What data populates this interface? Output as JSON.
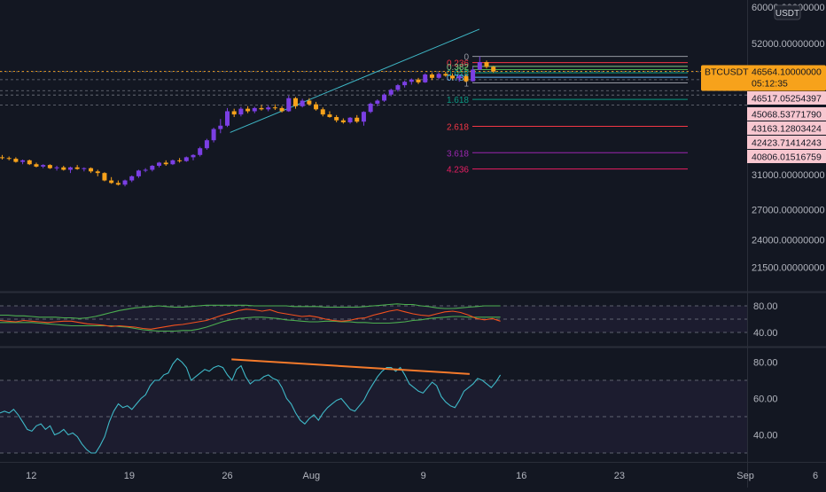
{
  "chart_data": {
    "type": "candlestick",
    "symbol": "BTCUSDT",
    "currency_badge": "USDT",
    "colors": {
      "background": "#131722",
      "up": "#7b3fe4",
      "down": "#f7a21b",
      "price_tag": "#f7a21b",
      "level_tag": "#f8c7d0",
      "rsi_line": "#3fb9c8",
      "trendline": "#3fb9c8",
      "divergence": "#f47a2b"
    },
    "price_axis": {
      "scale": "log",
      "range": [
        19000,
        60000
      ],
      "ticks": [
        "60000.00000000",
        "52000.00000000",
        "31000.00000000",
        "27000.00000000",
        "24000.00000000",
        "21500.00000000"
      ]
    },
    "price_tag": {
      "label": "BTCUSDT",
      "value": "46564.10000000",
      "countdown": "05:12:35"
    },
    "level_tags": [
      "46517.05254397",
      "45068.53771790",
      "43163.12803424",
      "42423.71414243",
      "40806.01516759"
    ],
    "fib_levels": [
      {
        "label": "0",
        "price": 49400,
        "color": "#9598a1"
      },
      {
        "label": "0.236",
        "price": 48200,
        "color": "#f23645"
      },
      {
        "label": "0.382",
        "price": 47500,
        "color": "#81c784"
      },
      {
        "label": "0.5",
        "price": 46900,
        "color": "#4caf50"
      },
      {
        "label": "0.618",
        "price": 46300,
        "color": "#089981"
      },
      {
        "label": "0.786",
        "price": 45500,
        "color": "#64b5f6"
      },
      {
        "label": "1",
        "price": 44500,
        "color": "#9598a1"
      },
      {
        "label": "1.618",
        "price": 41700,
        "color": "#089981"
      },
      {
        "label": "2.618",
        "price": 37500,
        "color": "#f23645"
      },
      {
        "label": "3.618",
        "price": 33800,
        "color": "#9c27b0"
      },
      {
        "label": "4.236",
        "price": 31700,
        "color": "#e91e63"
      }
    ],
    "x_ticks": [
      {
        "label": "12",
        "day": 0
      },
      {
        "label": "19",
        "day": 7
      },
      {
        "label": "26",
        "day": 14
      },
      {
        "label": "Aug",
        "day": 20
      },
      {
        "label": "9",
        "day": 28
      },
      {
        "label": "16",
        "day": 35
      },
      {
        "label": "23",
        "day": 42
      },
      {
        "label": "Sep",
        "day": 51
      },
      {
        "label": "6",
        "day": 56
      }
    ],
    "candles": [
      [
        33700,
        33900,
        33400,
        33600
      ],
      [
        33600,
        33800,
        33300,
        33500
      ],
      [
        33500,
        33700,
        33200,
        33700
      ],
      [
        33700,
        33900,
        33400,
        33500
      ],
      [
        33500,
        34100,
        33300,
        34000
      ],
      [
        34000,
        34100,
        33100,
        33200
      ],
      [
        33200,
        33500,
        32900,
        33100
      ],
      [
        33100,
        33300,
        32800,
        33000
      ],
      [
        33000,
        33200,
        32500,
        32600
      ],
      [
        32600,
        32900,
        32300,
        32800
      ],
      [
        32800,
        32900,
        32200,
        32300
      ],
      [
        32300,
        32500,
        31900,
        32000
      ],
      [
        32000,
        32300,
        31800,
        32200
      ],
      [
        32200,
        32300,
        31700,
        31800
      ],
      [
        31800,
        32100,
        31500,
        31900
      ],
      [
        31900,
        32100,
        31500,
        31600
      ],
      [
        31600,
        32000,
        31200,
        31900
      ],
      [
        31900,
        32200,
        31600,
        31700
      ],
      [
        31700,
        31900,
        31400,
        31800
      ],
      [
        31800,
        31900,
        31200,
        31400
      ],
      [
        31400,
        31600,
        30800,
        31200
      ],
      [
        31200,
        31300,
        30200,
        30300
      ],
      [
        30300,
        30700,
        29900,
        30000
      ],
      [
        30000,
        30300,
        29700,
        29800
      ],
      [
        29800,
        30400,
        29600,
        30300
      ],
      [
        30300,
        30900,
        30100,
        30800
      ],
      [
        30800,
        31600,
        30600,
        31500
      ],
      [
        31500,
        31800,
        31300,
        31600
      ],
      [
        31600,
        32200,
        31400,
        32100
      ],
      [
        32100,
        32600,
        31900,
        32500
      ],
      [
        32500,
        32800,
        32100,
        32300
      ],
      [
        32300,
        32900,
        32200,
        32800
      ],
      [
        32800,
        33100,
        32500,
        32700
      ],
      [
        32700,
        33300,
        32600,
        33200
      ],
      [
        33200,
        33600,
        32800,
        33500
      ],
      [
        33500,
        34600,
        33300,
        34400
      ],
      [
        34400,
        35700,
        34200,
        35500
      ],
      [
        35500,
        37300,
        35200,
        37100
      ],
      [
        37100,
        38600,
        36500,
        37600
      ],
      [
        37600,
        40300,
        37400,
        39800
      ],
      [
        39800,
        40200,
        38900,
        39300
      ],
      [
        39300,
        40500,
        39000,
        40200
      ],
      [
        40200,
        40600,
        39500,
        39800
      ],
      [
        39800,
        40500,
        39500,
        40300
      ],
      [
        40300,
        40800,
        39900,
        40100
      ],
      [
        40100,
        40700,
        39800,
        40400
      ],
      [
        40400,
        40900,
        40000,
        40300
      ],
      [
        40300,
        40600,
        39600,
        39800
      ],
      [
        39800,
        42300,
        39700,
        41900
      ],
      [
        41900,
        42100,
        40200,
        40600
      ],
      [
        40600,
        41800,
        40400,
        41500
      ],
      [
        41500,
        41900,
        40700,
        40900
      ],
      [
        40900,
        41300,
        39900,
        40100
      ],
      [
        40100,
        40400,
        39000,
        39300
      ],
      [
        39300,
        39800,
        38800,
        38900
      ],
      [
        38900,
        39200,
        38100,
        38400
      ],
      [
        38400,
        38700,
        37900,
        38100
      ],
      [
        38100,
        38900,
        37900,
        38800
      ],
      [
        38800,
        39200,
        38000,
        38200
      ],
      [
        38200,
        39800,
        37600,
        39700
      ],
      [
        39700,
        41200,
        39500,
        41000
      ],
      [
        41000,
        41700,
        40600,
        41500
      ],
      [
        41500,
        42700,
        41300,
        42500
      ],
      [
        42500,
        43500,
        42200,
        43300
      ],
      [
        43300,
        44300,
        43000,
        44100
      ],
      [
        44100,
        44900,
        43700,
        44700
      ],
      [
        44700,
        45300,
        44200,
        45100
      ],
      [
        45100,
        45400,
        44300,
        44600
      ],
      [
        44600,
        46200,
        44500,
        46000
      ],
      [
        46000,
        46300,
        45000,
        45400
      ],
      [
        45400,
        46400,
        45200,
        46100
      ],
      [
        46100,
        46500,
        45600,
        45800
      ],
      [
        45800,
        46200,
        45000,
        45300
      ],
      [
        45300,
        46000,
        44700,
        45700
      ],
      [
        45700,
        46100,
        44600,
        44800
      ],
      [
        44800,
        47400,
        44700,
        46900
      ],
      [
        46900,
        49400,
        46800,
        48300
      ],
      [
        48300,
        48600,
        47100,
        47400
      ],
      [
        47400,
        47600,
        46300,
        46564
      ]
    ],
    "trendline": {
      "from": {
        "day": 14.2,
        "price": 36600
      },
      "to": {
        "day": 32,
        "price": 55000
      }
    },
    "stoch_panel": {
      "ticks": [
        "80.00",
        "40.00"
      ],
      "band": [
        40,
        80
      ],
      "upper": [
        66,
        66,
        65,
        65,
        64,
        63,
        63,
        63,
        62,
        62,
        61,
        62,
        64,
        67,
        70,
        73,
        75,
        77,
        78,
        79,
        80,
        79,
        78,
        78,
        79,
        80,
        81,
        81,
        81,
        81,
        81,
        81,
        80,
        80,
        80,
        80,
        80,
        79,
        79,
        79,
        79,
        78,
        78,
        78,
        78,
        78,
        79,
        80,
        81,
        82,
        83,
        82,
        82,
        80,
        79,
        77,
        76,
        76,
        77,
        78,
        79,
        80,
        80,
        80
      ],
      "lower": [
        55,
        55,
        55,
        55,
        55,
        54,
        53,
        52,
        51,
        50,
        50,
        50,
        50,
        50,
        50,
        49,
        48,
        46,
        44,
        43,
        42,
        42,
        42,
        43,
        43,
        45,
        48,
        52,
        56,
        59,
        61,
        62,
        63,
        63,
        62,
        61,
        59,
        58,
        57,
        56,
        56,
        57,
        57,
        56,
        56,
        55,
        55,
        54,
        54,
        54,
        55,
        56,
        58,
        59,
        61,
        62,
        63,
        64,
        64,
        63,
        63,
        63,
        63,
        63
      ],
      "k_line": [
        58,
        57,
        56,
        58,
        57,
        56,
        55,
        56,
        57,
        57,
        55,
        53,
        52,
        51,
        49,
        50,
        49,
        48,
        46,
        45,
        47,
        49,
        51,
        52,
        54,
        56,
        58,
        62,
        66,
        69,
        73,
        75,
        74,
        72,
        74,
        70,
        68,
        66,
        64,
        65,
        63,
        60,
        58,
        57,
        58,
        61,
        62,
        66,
        69,
        72,
        74,
        71,
        68,
        66,
        65,
        68,
        71,
        72,
        70,
        66,
        61,
        59,
        61,
        57
      ]
    },
    "rsi_panel": {
      "ticks": [
        "80.00",
        "60.00",
        "40.00"
      ],
      "band": [
        30,
        70
      ],
      "values": [
        52,
        53,
        52,
        54,
        51,
        47,
        43,
        42,
        45,
        46,
        43,
        45,
        40,
        41,
        43,
        40,
        41,
        39,
        35,
        32,
        30,
        30,
        34,
        39,
        47,
        53,
        57,
        55,
        56,
        54,
        57,
        60,
        62,
        67,
        70,
        70,
        73,
        74,
        79,
        82,
        80,
        77,
        70,
        72,
        74,
        76,
        75,
        77,
        78,
        77,
        73,
        70,
        76,
        78,
        72,
        68,
        70,
        70,
        72,
        73,
        71,
        70,
        66,
        60,
        57,
        52,
        48,
        46,
        49,
        51,
        48,
        52,
        55,
        57,
        59,
        60,
        57,
        54,
        53,
        56,
        59,
        64,
        68,
        72,
        75,
        77,
        77,
        75,
        77,
        73,
        68,
        66,
        64,
        63,
        66,
        69,
        67,
        61,
        58,
        56,
        55,
        59,
        64,
        66,
        68,
        71,
        70,
        68,
        66,
        69,
        73
      ]
    },
    "divergence_line": {
      "from": {
        "day": 14.3,
        "rsi": 81.5
      },
      "to": {
        "day": 31.3,
        "rsi": 73.5
      }
    }
  }
}
